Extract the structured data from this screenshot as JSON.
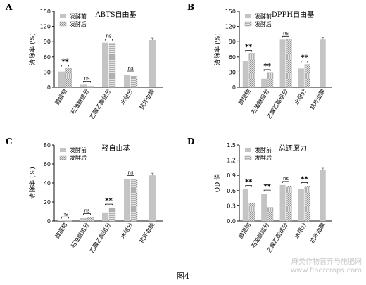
{
  "figure_caption": "图4",
  "watermark": {
    "line1": "麻类作物营养与施肥网",
    "line2": "www.fibercrops.com"
  },
  "legend": {
    "before": "发酵前",
    "after": "发酵后"
  },
  "colors": {
    "before": "#c4c4c4",
    "after_hatch": "#8a8a8a",
    "axis": "#111111"
  },
  "chart_data": [
    {
      "panel": "A",
      "type": "bar",
      "title": "ABTS自由基",
      "ylabel": "清除率 (%)",
      "ylim": [
        0,
        150
      ],
      "yticks": [
        "0",
        "30",
        "60",
        "90",
        "120",
        "150"
      ],
      "categories": [
        "醇提物",
        "石油醚组分",
        "乙酸乙酯组分",
        "水组分",
        "抗坏血酸"
      ],
      "series": [
        {
          "name": "发酵前",
          "values": [
            31,
            5,
            88,
            25,
            93
          ]
        },
        {
          "name": "发酵后",
          "values": [
            37,
            2,
            87,
            22,
            null
          ]
        }
      ],
      "significance": [
        "**",
        "ns",
        "ns",
        "ns",
        ""
      ]
    },
    {
      "panel": "B",
      "type": "bar",
      "title": "DPPH自由基",
      "ylabel": "清除率 (%)",
      "ylim": [
        0,
        150
      ],
      "yticks": [
        "0",
        "30",
        "60",
        "90",
        "120",
        "150"
      ],
      "categories": [
        "醇提物",
        "石油醚组分",
        "乙酸乙酯组分",
        "水组分",
        "抗坏血酸"
      ],
      "series": [
        {
          "name": "发酵前",
          "values": [
            52,
            17,
            94,
            37,
            94
          ]
        },
        {
          "name": "发酵后",
          "values": [
            66,
            28,
            94,
            45,
            null
          ]
        }
      ],
      "significance": [
        "**",
        "**",
        "ns",
        "**",
        ""
      ]
    },
    {
      "panel": "C",
      "type": "bar",
      "title": "羟自由基",
      "ylabel": "清除率 (%)",
      "ylim": [
        0,
        80
      ],
      "yticks": [
        "0",
        "20",
        "40",
        "60",
        "80"
      ],
      "categories": [
        "醇提物",
        "石油醚组分",
        "乙酸乙酯组分",
        "水组分",
        "抗坏血酸"
      ],
      "series": [
        {
          "name": "发酵前",
          "values": [
            0.5,
            3,
            9,
            44,
            48
          ]
        },
        {
          "name": "发酵后",
          "values": [
            0.3,
            4,
            14,
            44,
            null
          ]
        }
      ],
      "significance": [
        "ns",
        "ns",
        "**",
        "ns",
        ""
      ]
    },
    {
      "panel": "D",
      "type": "bar",
      "title": "总还原力",
      "ylabel": "OD 值",
      "ylim": [
        0,
        1.5
      ],
      "yticks": [
        "0.0",
        "0.3",
        "0.6",
        "0.9",
        "1.2",
        "1.5"
      ],
      "categories": [
        "醇提物",
        "石油醚组分",
        "乙酸乙酯组分",
        "水组分",
        "抗坏血酸"
      ],
      "series": [
        {
          "name": "发酵前",
          "values": [
            0.63,
            0.54,
            0.71,
            0.63,
            1.0
          ]
        },
        {
          "name": "发酵后",
          "values": [
            0.36,
            0.27,
            0.69,
            0.69,
            null
          ]
        }
      ],
      "significance": [
        "**",
        "**",
        "ns",
        "**",
        ""
      ]
    }
  ]
}
